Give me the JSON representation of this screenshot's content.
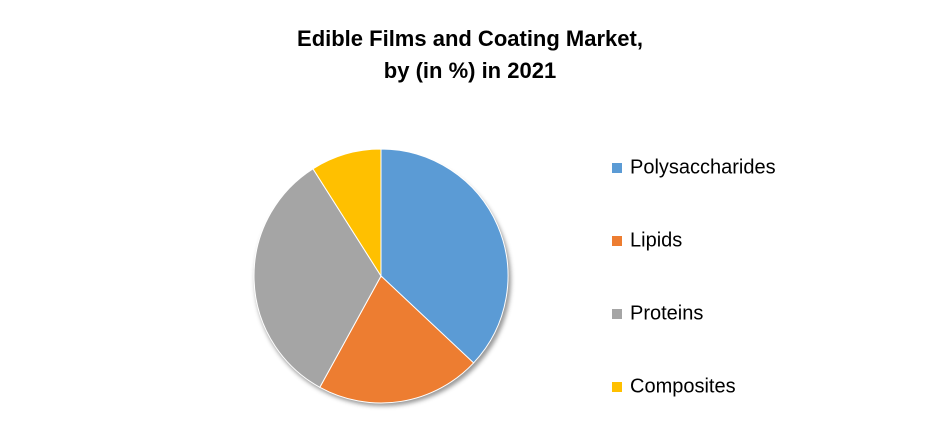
{
  "chart_data": {
    "type": "pie",
    "title": [
      "Edible Films and Coating Market,",
      "by (in %) in 2021"
    ],
    "categories": [
      "Polysaccharides",
      "Lipids",
      "Proteins",
      "Composites"
    ],
    "values": [
      37,
      21,
      33,
      9
    ],
    "colors": [
      "#5b9bd5",
      "#ed7d31",
      "#a5a5a5",
      "#ffc000"
    ],
    "legend": "right"
  }
}
